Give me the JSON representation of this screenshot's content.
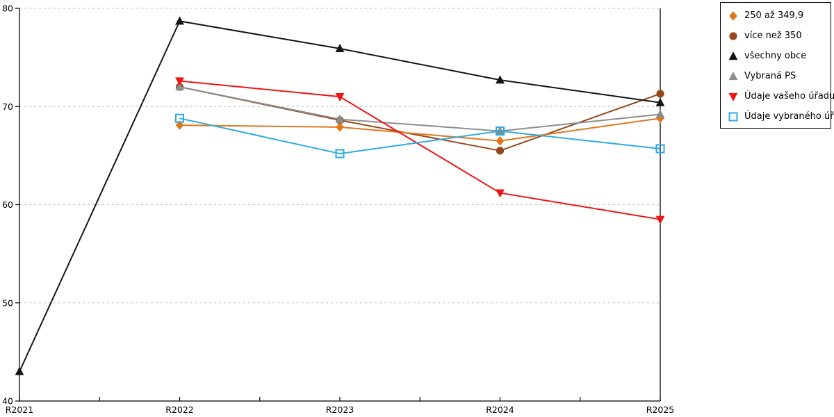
{
  "chart_data": {
    "type": "line",
    "title": "",
    "xlabel": "",
    "ylabel": "",
    "categories": [
      "R2021",
      "R2022",
      "R2023",
      "R2024",
      "R2025"
    ],
    "yticks": [
      40,
      50,
      60,
      70,
      80
    ],
    "ylim": [
      40,
      80
    ],
    "grid": "horizontal-dashed",
    "legend_position": "top-right",
    "legend_border": "#000000",
    "grid_color": "#bdbdbd",
    "axis_color": "#000000",
    "series": [
      {
        "id": "250-az-349",
        "name": "250 až 349,9",
        "marker": "diamond",
        "color": "#e0761a",
        "values": [
          null,
          68.1,
          67.9,
          66.5,
          68.8
        ]
      },
      {
        "id": "vice-nez-350",
        "name": "více než 350",
        "marker": "circle",
        "color": "#97481a",
        "values": [
          null,
          72.0,
          68.6,
          65.5,
          71.3
        ]
      },
      {
        "id": "vsechny-obce",
        "name": "všechny obce",
        "marker": "triangle-up",
        "color": "#141414",
        "values": [
          43.0,
          78.7,
          75.9,
          72.7,
          70.4
        ]
      },
      {
        "id": "vybrana-ps",
        "name": "Vybraná PS",
        "marker": "triangle-up",
        "color": "#8c8c8c",
        "values": [
          null,
          72.0,
          68.7,
          67.5,
          69.2
        ]
      },
      {
        "id": "udaje-vaseho-uradu",
        "name": "Údaje vašeho úřadu",
        "marker": "triangle-down",
        "color": "#f01414",
        "values": [
          null,
          72.6,
          71.0,
          61.2,
          58.5
        ]
      },
      {
        "id": "udaje-vybraneho-uradu",
        "name": "Údaje vybraného úřadu",
        "marker": "square-open",
        "color": "#29abe2",
        "values": [
          null,
          68.8,
          65.2,
          67.5,
          65.7
        ]
      }
    ],
    "draw_order": [
      1,
      0,
      2,
      3,
      4,
      5
    ]
  }
}
